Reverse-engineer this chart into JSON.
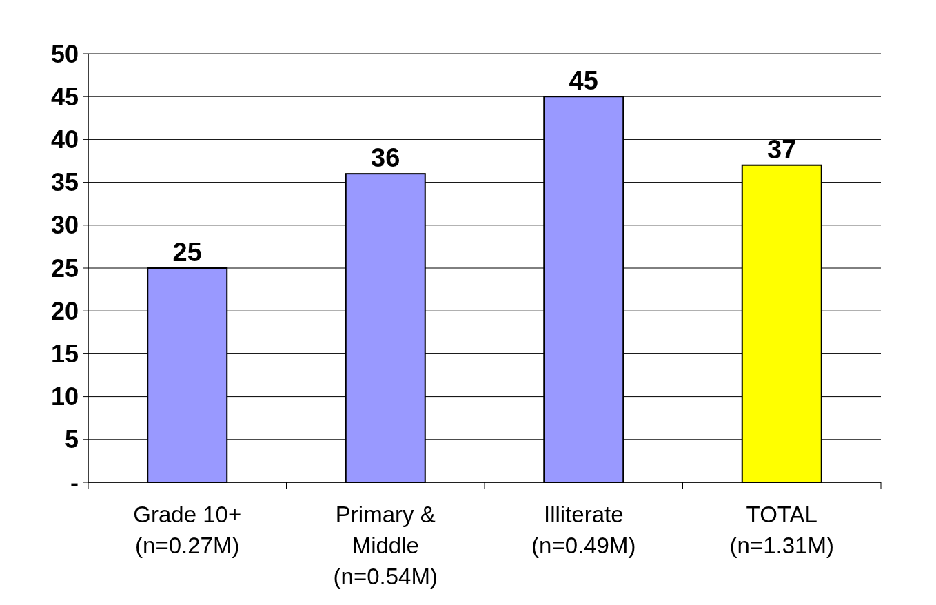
{
  "chart_data": {
    "type": "bar",
    "categories": [
      "Grade 10+\n(n=0.27M)",
      "Primary &\nMiddle\n(n=0.54M)",
      "Illiterate\n(n=0.49M)",
      "TOTAL\n(n=1.31M)"
    ],
    "values": [
      25,
      36,
      45,
      37
    ],
    "colors": [
      "#9999ff",
      "#9999ff",
      "#9999ff",
      "#ffff00"
    ],
    "ylim": [
      0,
      50
    ],
    "yticks": [
      {
        "value": 0,
        "label": "-"
      },
      5,
      10,
      15,
      20,
      25,
      30,
      35,
      40,
      45,
      50
    ],
    "grid": "y",
    "data_labels": true
  }
}
